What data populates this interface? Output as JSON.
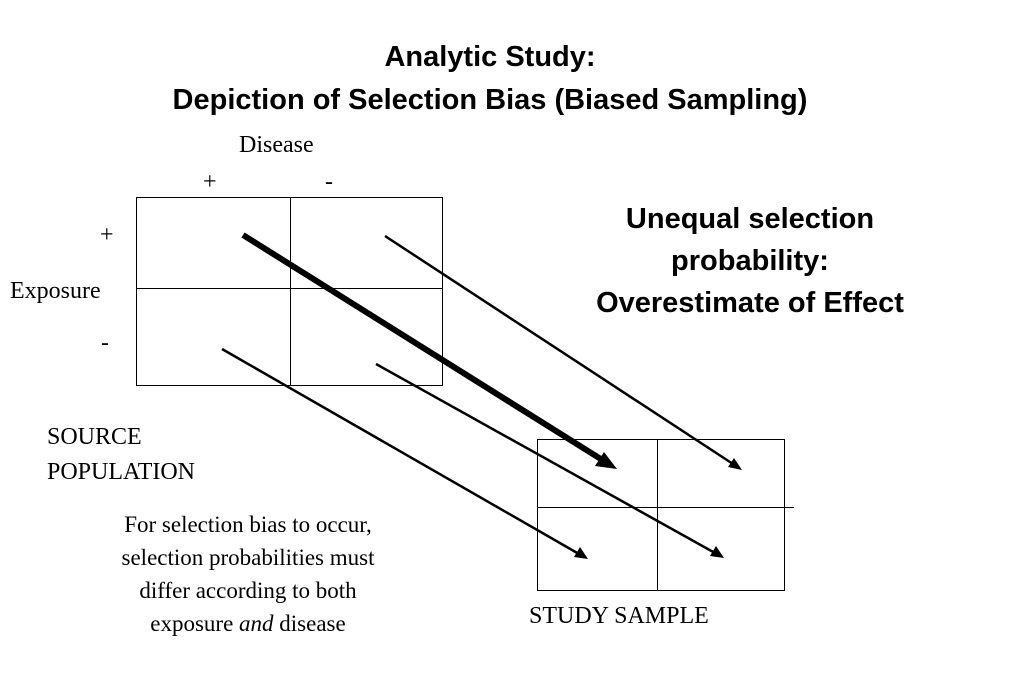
{
  "title": {
    "line1": "Analytic Study:",
    "line2": "Depiction of Selection Bias (Biased Sampling)"
  },
  "source_table": {
    "column_header": "Disease",
    "column_plus": "+",
    "column_minus": "-",
    "row_header": "Exposure",
    "row_plus": "+",
    "row_minus": "-",
    "label_line1": "SOURCE",
    "label_line2": "POPULATION"
  },
  "callout": {
    "line1": "Unequal selection",
    "line2": "probability:",
    "line3": "Overestimate of Effect"
  },
  "note": {
    "line1": "For selection bias to occur,",
    "line2": "selection probabilities must",
    "line3": "differ according to both",
    "line4_pre": "exposure ",
    "line4_em": "and",
    "line4_post": " disease"
  },
  "study_sample": {
    "label": "STUDY SAMPLE"
  }
}
